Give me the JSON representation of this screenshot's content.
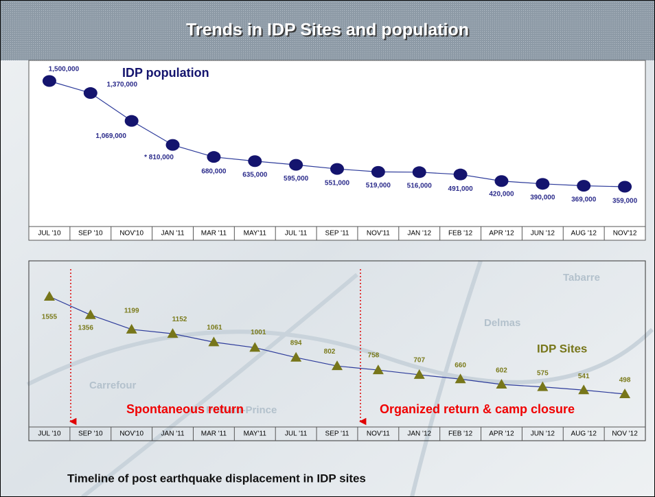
{
  "title": "Trends in IDP Sites and population",
  "caption": "Timeline of post earthquake displacement in IDP sites",
  "map_labels": [
    "Tabarre",
    "Delmas",
    "Carrefour",
    "Port-au-Prince"
  ],
  "chart_data": [
    {
      "type": "line",
      "title": "IDP population",
      "marker": "circle",
      "color": "#14146e",
      "line_color": "#2c3a9a",
      "label_color": "#2a2a8a",
      "categories": [
        "JUL '10",
        "SEP '10",
        "NOV'10",
        "JAN '11",
        "MAR '11",
        "MAY'11",
        "JUL '11",
        "SEP '11",
        "NOV'11",
        "JAN '12",
        "FEB '12",
        "APR '12",
        "JUN '12",
        "AUG '12",
        "NOV'12"
      ],
      "values": [
        1500000,
        1370000,
        1069000,
        810000,
        680000,
        635000,
        595000,
        551000,
        519000,
        516000,
        491000,
        420000,
        390000,
        369000,
        359000
      ],
      "value_labels": [
        "1,500,000",
        "1,370,000",
        "1,069,000",
        "* 810,000",
        "680,000",
        "635,000",
        "595,000",
        "551,000",
        "519,000",
        "516,000",
        "491,000",
        "420,000",
        "390,000",
        "369,000",
        "359,000"
      ]
    },
    {
      "type": "line",
      "title": "IDP Sites",
      "marker": "triangle",
      "color": "#77761a",
      "line_color": "#2c3a9a",
      "label_color": "#7a7a1a",
      "categories": [
        "JUL '10",
        "SEP '10",
        "NOV'10",
        "JAN '11",
        "MAR '11",
        "MAY'11",
        "JUL '11",
        "SEP '11",
        "NOV'11",
        "JAN '12",
        "FEB '12",
        "APR '12",
        "JUN '12",
        "AUG '12",
        "NOV '12"
      ],
      "values": [
        1555,
        1356,
        1199,
        1152,
        1061,
        1001,
        894,
        802,
        758,
        707,
        660,
        602,
        575,
        541,
        498
      ],
      "annotations": [
        "Spontaneous return",
        "Organized return & camp closure"
      ]
    }
  ]
}
